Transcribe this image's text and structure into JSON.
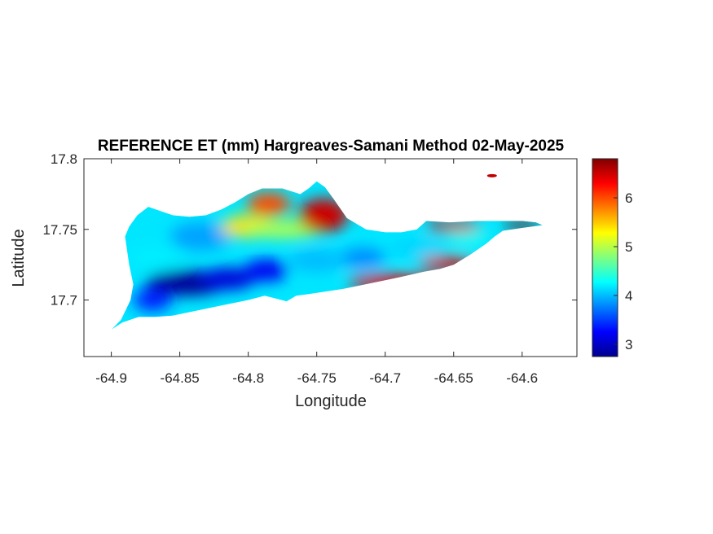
{
  "chart_data": {
    "type": "heatmap",
    "title": "REFERENCE ET (mm) Hargreaves-Samani Method  02-May-2025",
    "xlabel": "Longitude",
    "ylabel": "Latitude",
    "xlim": [
      -64.92,
      -64.56
    ],
    "ylim": [
      17.66,
      17.8
    ],
    "xticks": [
      -64.9,
      -64.85,
      -64.8,
      -64.75,
      -64.7,
      -64.65,
      -64.6
    ],
    "xtick_labels": [
      "-64.9",
      "-64.85",
      "-64.8",
      "-64.75",
      "-64.7",
      "-64.65",
      "-64.6"
    ],
    "yticks": [
      17.7,
      17.75,
      17.8
    ],
    "ytick_labels": [
      "17.7",
      "17.75",
      "17.8"
    ],
    "colormap": "jet",
    "clim": [
      2.75,
      6.8
    ],
    "colorbar_ticks": [
      3,
      4,
      5,
      6
    ],
    "colorbar_tick_labels": [
      "3",
      "4",
      "5",
      "6"
    ],
    "grid": false,
    "legend": "colorbar-right",
    "island_outline": [
      [
        -64.9,
        17.679
      ],
      [
        -64.893,
        17.686
      ],
      [
        -64.886,
        17.7
      ],
      [
        -64.884,
        17.711
      ],
      [
        -64.887,
        17.725
      ],
      [
        -64.89,
        17.745
      ],
      [
        -64.887,
        17.752
      ],
      [
        -64.881,
        17.76
      ],
      [
        -64.873,
        17.766
      ],
      [
        -64.864,
        17.763
      ],
      [
        -64.855,
        17.76
      ],
      [
        -64.843,
        17.759
      ],
      [
        -64.831,
        17.76
      ],
      [
        -64.82,
        17.764
      ],
      [
        -64.81,
        17.769
      ],
      [
        -64.8,
        17.775
      ],
      [
        -64.79,
        17.779
      ],
      [
        -64.775,
        17.779
      ],
      [
        -64.762,
        17.775
      ],
      [
        -64.756,
        17.779
      ],
      [
        -64.75,
        17.784
      ],
      [
        -64.744,
        17.78
      ],
      [
        -64.738,
        17.772
      ],
      [
        -64.728,
        17.758
      ],
      [
        -64.714,
        17.75
      ],
      [
        -64.7,
        17.748
      ],
      [
        -64.688,
        17.748
      ],
      [
        -64.677,
        17.75
      ],
      [
        -64.67,
        17.756
      ],
      [
        -64.653,
        17.755
      ],
      [
        -64.633,
        17.756
      ],
      [
        -64.615,
        17.756
      ],
      [
        -64.6,
        17.756
      ],
      [
        -64.59,
        17.755
      ],
      [
        -64.585,
        17.753
      ],
      [
        -64.6,
        17.751
      ],
      [
        -64.614,
        17.749
      ],
      [
        -64.62,
        17.745
      ],
      [
        -64.626,
        17.74
      ],
      [
        -64.638,
        17.732
      ],
      [
        -64.65,
        17.725
      ],
      [
        -64.66,
        17.722
      ],
      [
        -64.672,
        17.72
      ],
      [
        -64.69,
        17.716
      ],
      [
        -64.71,
        17.712
      ],
      [
        -64.73,
        17.708
      ],
      [
        -64.75,
        17.705
      ],
      [
        -64.765,
        17.703
      ],
      [
        -64.772,
        17.699
      ],
      [
        -64.78,
        17.701
      ],
      [
        -64.788,
        17.703
      ],
      [
        -64.8,
        17.7
      ],
      [
        -64.82,
        17.696
      ],
      [
        -64.84,
        17.692
      ],
      [
        -64.855,
        17.689
      ],
      [
        -64.868,
        17.688
      ],
      [
        -64.88,
        17.688
      ],
      [
        -64.892,
        17.684
      ]
    ],
    "islet": [
      -64.622,
      17.788
    ],
    "regions": [
      {
        "center": [
          -64.845,
          17.712
        ],
        "radius": [
          0.03,
          0.009
        ],
        "value": 2.85
      },
      {
        "center": [
          -64.815,
          17.715
        ],
        "radius": [
          0.02,
          0.008
        ],
        "value": 3.1
      },
      {
        "center": [
          -64.787,
          17.721
        ],
        "radius": [
          0.016,
          0.008
        ],
        "value": 3.2
      },
      {
        "center": [
          -64.87,
          17.7
        ],
        "radius": [
          0.014,
          0.008
        ],
        "value": 3.4
      },
      {
        "center": [
          -64.868,
          17.73
        ],
        "radius": [
          0.02,
          0.008
        ],
        "value": 4.2
      },
      {
        "center": [
          -64.835,
          17.745
        ],
        "radius": [
          0.022,
          0.01
        ],
        "value": 3.9
      },
      {
        "center": [
          -64.75,
          17.728
        ],
        "radius": [
          0.02,
          0.008
        ],
        "value": 4.0
      },
      {
        "center": [
          -64.716,
          17.73
        ],
        "radius": [
          0.016,
          0.007
        ],
        "value": 3.8
      },
      {
        "center": [
          -64.678,
          17.737
        ],
        "radius": [
          0.02,
          0.006
        ],
        "value": 4.1
      },
      {
        "center": [
          -64.64,
          17.745
        ],
        "radius": [
          0.015,
          0.006
        ],
        "value": 4.3
      },
      {
        "center": [
          -64.8,
          17.752
        ],
        "radius": [
          0.02,
          0.008
        ],
        "value": 5.4
      },
      {
        "center": [
          -64.775,
          17.75
        ],
        "radius": [
          0.03,
          0.006
        ],
        "value": 5.0
      },
      {
        "center": [
          -64.785,
          17.768
        ],
        "radius": [
          0.016,
          0.008
        ],
        "value": 6.0
      },
      {
        "center": [
          -64.745,
          17.76
        ],
        "radius": [
          0.018,
          0.012
        ],
        "value": 6.5
      },
      {
        "center": [
          -64.695,
          17.713
        ],
        "radius": [
          0.032,
          0.005
        ],
        "value": 6.3
      },
      {
        "center": [
          -64.655,
          17.726
        ],
        "radius": [
          0.02,
          0.005
        ],
        "value": 6.4
      },
      {
        "center": [
          -64.65,
          17.752
        ],
        "radius": [
          0.02,
          0.004
        ],
        "value": 6.5
      },
      {
        "center": [
          -64.6,
          17.753
        ],
        "radius": [
          0.014,
          0.003
        ],
        "value": 6.8
      }
    ]
  }
}
